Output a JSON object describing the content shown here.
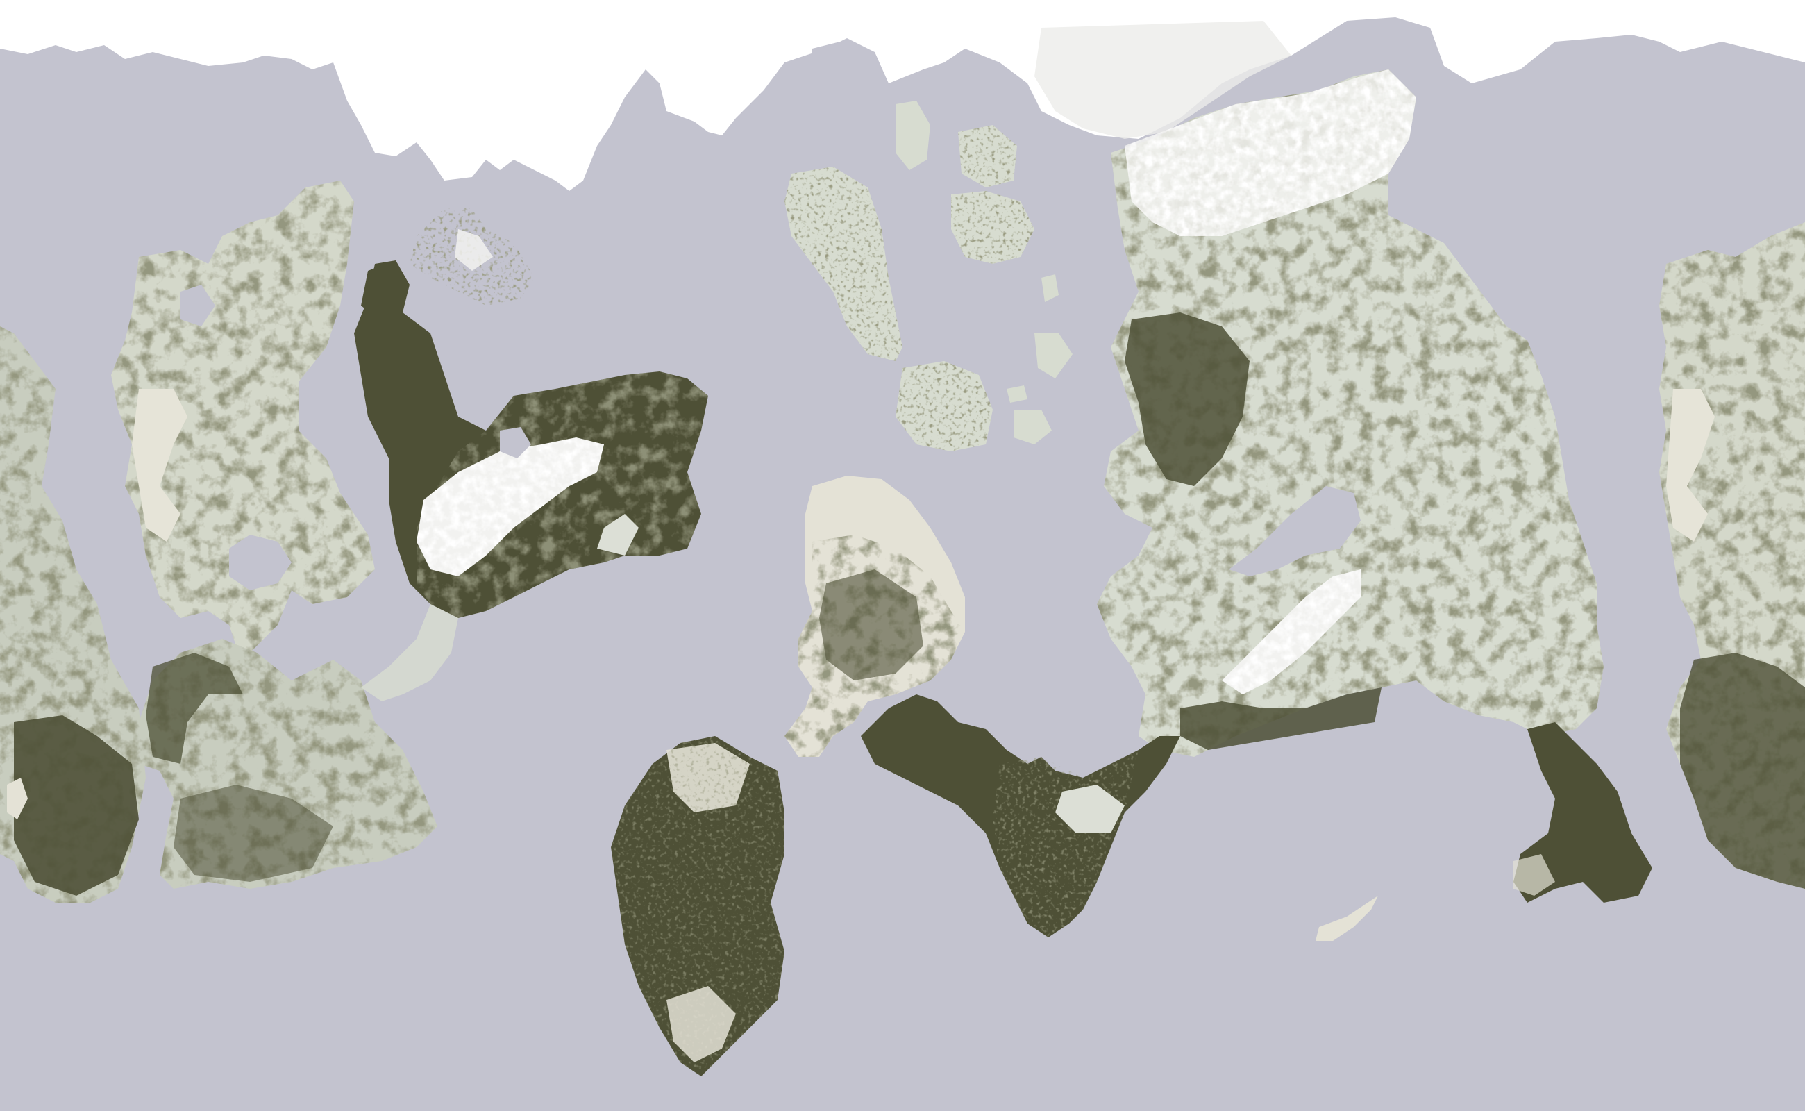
{
  "map": {
    "projection": "equirectangular",
    "wraps_horizontally": true,
    "labels": [],
    "palette": {
      "ocean": "#c3c3cf",
      "ice": "#ffffff",
      "snow": "#f2f2f0",
      "steppe": "#e4e2d6",
      "grassland": "#d7dcd0",
      "mixed_forest": "#a7ab94",
      "dense_forest": "#4e5036"
    },
    "features": [
      "polar-ice-cap",
      "north-west-continent",
      "mountain-peninsula-continent",
      "northern-islands",
      "central-continent",
      "southern-island",
      "eastern-supercontinent",
      "south-east-islet"
    ]
  }
}
